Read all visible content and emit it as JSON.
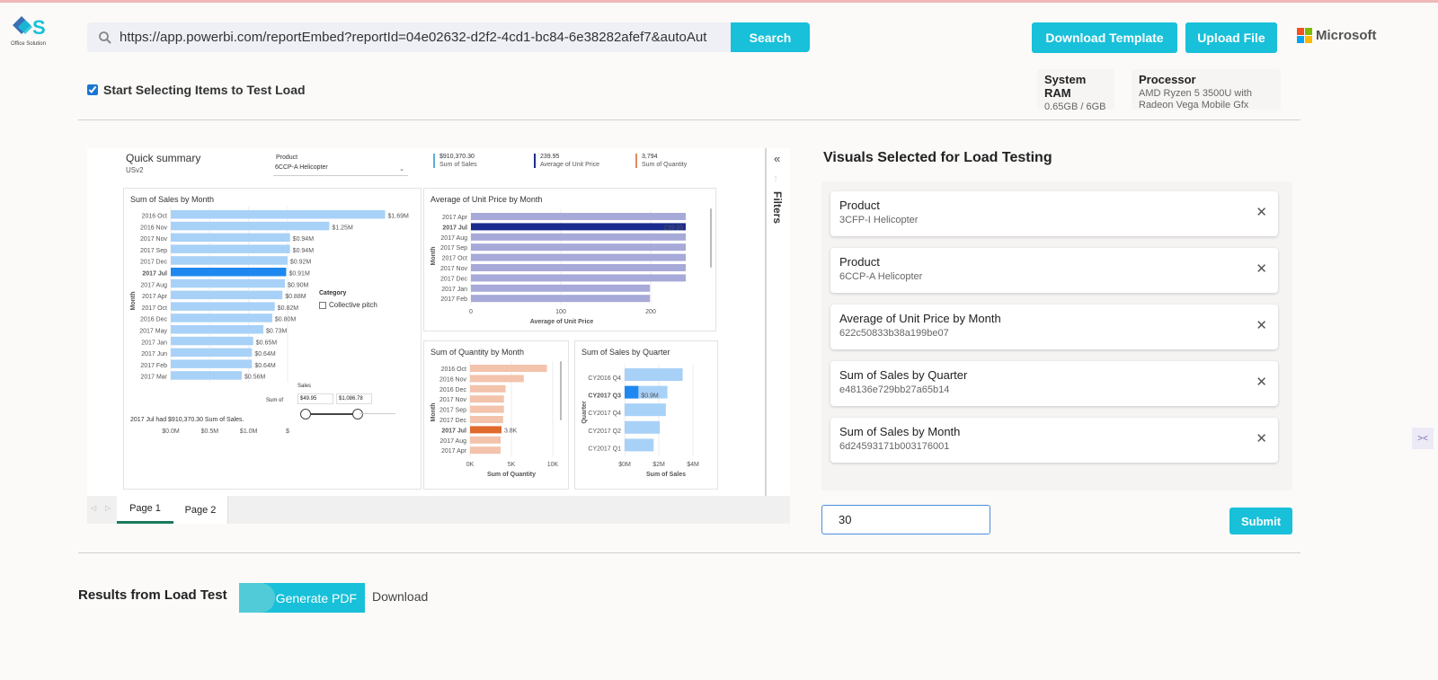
{
  "brand": {
    "logo_text": "Office Solution",
    "primary_color": "#18c0d9"
  },
  "header": {
    "url_value": "https://app.powerbi.com/reportEmbed?reportId=04e02632-d2f2-4cd1-bc84-6e38282afef7&autoAut",
    "search_label": "Search",
    "download_template_label": "Download Template",
    "upload_file_label": "Upload File",
    "microsoft_label": "Microsoft"
  },
  "selection": {
    "checkbox_label": "Start Selecting Items to Test Load",
    "checked": true
  },
  "system": {
    "ram_label": "System RAM",
    "ram_value": "0.65GB / 6GB",
    "processor_label": "Processor",
    "processor_value_1": "AMD Ryzen 5 3500U with",
    "processor_value_2": "Radeon Vega Mobile Gfx"
  },
  "report": {
    "title": "Quick summary",
    "subtitle": "USv2",
    "product_label": "Product",
    "product_value": "6CCP-A Helicopter",
    "kpis": [
      {
        "value": "$910,370.30",
        "label": "Sum of Sales",
        "color": "#5ab0d8"
      },
      {
        "value": "239.95",
        "label": "Average of Unit Price",
        "color": "#1f2d8a"
      },
      {
        "value": "3,794",
        "label": "Sum of Quantity",
        "color": "#e08a60"
      }
    ],
    "filters_label": "Filters",
    "pages": [
      "Page 1",
      "Page 2"
    ],
    "footnote": "2017 Jul had $910,370.30 Sum of Sales.",
    "category_label": "Category",
    "category_option": "Collective pitch",
    "slider_label": "Sales",
    "slider_axis_label": "Sum of",
    "slider_min": "$49.95",
    "slider_max": "$1,086.78"
  },
  "chart_data": [
    {
      "type": "bar",
      "title": "Sum of Sales by Month",
      "ylabel": "Month",
      "categories": [
        "2016 Oct",
        "2016 Nov",
        "2017 Nov",
        "2017 Sep",
        "2017 Dec",
        "2017 Jul",
        "2017 Aug",
        "2017 Apr",
        "2017 Oct",
        "2016 Dec",
        "2017 May",
        "2017 Jan",
        "2017 Jun",
        "2017 Feb",
        "2017 Mar"
      ],
      "values": [
        1.69,
        1.25,
        0.94,
        0.94,
        0.92,
        0.91,
        0.9,
        0.88,
        0.82,
        0.8,
        0.73,
        0.65,
        0.64,
        0.64,
        0.56
      ],
      "data_labels": [
        "$1.69M",
        "$1.25M",
        "$0.94M",
        "$0.94M",
        "$0.92M",
        "$0.91M",
        "$0.90M",
        "$0.88M",
        "$0.82M",
        "$0.80M",
        "$0.73M",
        "$0.65M",
        "$0.64M",
        "$0.64M",
        "$0.56M"
      ],
      "highlight": "2017 Jul",
      "xticks": [
        "$0.0M",
        "$0.5M",
        "$1.0M",
        "$"
      ],
      "xlim": [
        0,
        1.75
      ],
      "color": "#a8d1f7",
      "highlight_color": "#1e88f0"
    },
    {
      "type": "bar",
      "title": "Average of Unit Price by Month",
      "xlabel": "Average of Unit Price",
      "ylabel": "Month",
      "categories": [
        "2017 Apr",
        "2017 Jul",
        "2017 Aug",
        "2017 Sep",
        "2017 Oct",
        "2017 Nov",
        "2017 Dec",
        "2017 Jan",
        "2017 Feb"
      ],
      "values": [
        240,
        239.95,
        240,
        240,
        240,
        240,
        240,
        200,
        200
      ],
      "data_labels": [
        "",
        "239.95",
        "",
        "",
        "",
        "",
        "",
        "",
        ""
      ],
      "highlight": "2017 Jul",
      "xticks": [
        "0",
        "100",
        "200"
      ],
      "xlim": [
        0,
        245
      ],
      "color": "#a7a9d8",
      "highlight_color": "#1a2b8f"
    },
    {
      "type": "bar",
      "title": "Sum of Quantity by Month",
      "xlabel": "Sum of Quantity",
      "ylabel": "Month",
      "categories": [
        "2016 Oct",
        "2016 Nov",
        "2016 Dec",
        "2017 Nov",
        "2017 Sep",
        "2017 Dec",
        "2017 Jul",
        "2017 Aug",
        "2017 Apr"
      ],
      "values": [
        9.3,
        6.5,
        4.3,
        4.1,
        4.1,
        4.0,
        3.8,
        3.7,
        3.7
      ],
      "data_labels": [
        "",
        "",
        "",
        "",
        "",
        "",
        "3.8K",
        "",
        ""
      ],
      "highlight": "2017 Jul",
      "xticks": [
        "0K",
        "5K",
        "10K"
      ],
      "xlim": [
        0,
        10
      ],
      "color": "#f3c3ac",
      "highlight_color": "#e06a2c"
    },
    {
      "type": "bar",
      "title": "Sum of Sales by Quarter",
      "xlabel": "Sum of Sales",
      "ylabel": "Quarter",
      "categories": [
        "CY2016 Q4",
        "CY2017 Q3",
        "CY2017 Q4",
        "CY2017 Q2",
        "CY2017 Q1"
      ],
      "values": [
        3.8,
        2.8,
        2.7,
        2.3,
        1.9
      ],
      "data_labels": [
        "",
        "$0.9M",
        "",
        "",
        ""
      ],
      "highlight": "CY2017 Q3",
      "highlight_value": 0.9,
      "xticks": [
        "$0M",
        "$2M",
        "$4M"
      ],
      "xlim": [
        0,
        4
      ],
      "color": "#a8d1f7",
      "highlight_color": "#1e88f0"
    }
  ],
  "visuals_panel": {
    "title": "Visuals Selected for Load Testing",
    "items": [
      {
        "title": "Product",
        "sub": "3CFP-I Helicopter"
      },
      {
        "title": "Product",
        "sub": "6CCP-A Helicopter"
      },
      {
        "title": "Average of Unit Price by Month",
        "sub": "622c50833b38a199be07"
      },
      {
        "title": "Sum of Sales by Quarter",
        "sub": "e48136e729bb27a65b14"
      },
      {
        "title": "Sum of Sales by Month",
        "sub": "6d24593171b003176001"
      }
    ],
    "close_glyph": "✕",
    "load_count_value": "30",
    "submit_label": "Submit"
  },
  "results": {
    "label": "Results from Load Test",
    "generate_label": "Generate PDF",
    "download_label": "Download"
  }
}
